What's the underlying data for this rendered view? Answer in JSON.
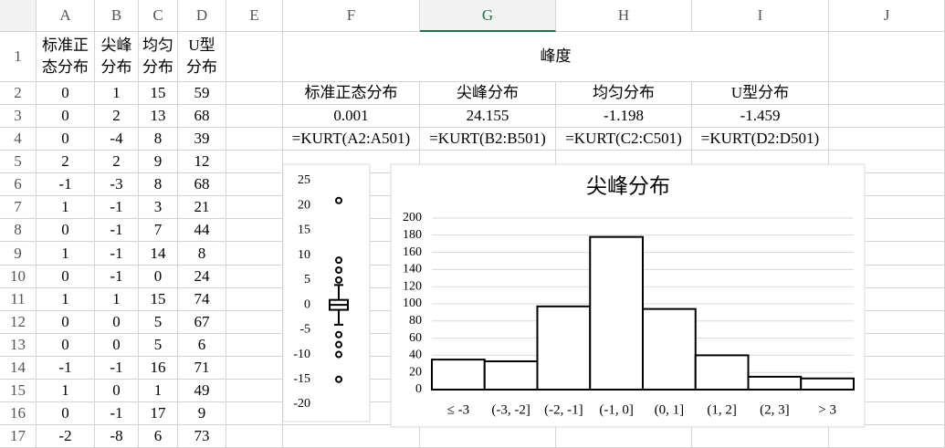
{
  "sheet": {
    "columns": [
      "A",
      "B",
      "C",
      "D",
      "E",
      "F",
      "G",
      "H",
      "I",
      "J"
    ],
    "rows": [
      1,
      2,
      3,
      4,
      5,
      6,
      7,
      8,
      9,
      10,
      11,
      12,
      13,
      14,
      15,
      16,
      17
    ],
    "cells": {
      "A1": "标准正态分布",
      "B1": "尖峰分布",
      "C1": "均匀分布",
      "D1": "U型分布",
      "F1": "峰度",
      "F2": "标准正态分布",
      "G2": "尖峰分布",
      "H2": "均匀分布",
      "I2": "U型分布",
      "F3": 0.001,
      "G3": 24.155,
      "H3": -1.198,
      "I3": -1.459,
      "F4": "=KURT(A2:A501)",
      "G4": "=KURT(B2:B501)",
      "H4": "=KURT(C2:C501)",
      "I4": "=KURT(D2:D501)",
      "A2": 0,
      "B2": 1,
      "C2": 15,
      "D2": 59,
      "A3": 0,
      "B3": 2,
      "C3": 13,
      "D3": 68,
      "A4": 0,
      "B4": -4,
      "C4": 8,
      "D4": 39,
      "A5": 2,
      "B5": 2,
      "C5": 9,
      "D5": 12,
      "A6": -1,
      "B6": -3,
      "C6": 8,
      "D6": 68,
      "A7": 1,
      "B7": -1,
      "C7": 3,
      "D7": 21,
      "A8": 0,
      "B8": -1,
      "C8": 7,
      "D8": 44,
      "A9": 1,
      "B9": -1,
      "C9": 14,
      "D9": 8,
      "A10": 0,
      "B10": -1,
      "C10": 0,
      "D10": 24,
      "A11": 1,
      "B11": 1,
      "C11": 15,
      "D11": 74,
      "A12": 0,
      "B12": 0,
      "C12": 5,
      "D12": 67,
      "A13": 0,
      "B13": 0,
      "C13": 5,
      "D13": 6,
      "A14": -1,
      "B14": -1,
      "C14": 16,
      "D14": 71,
      "A15": 1,
      "B15": 0,
      "C15": 1,
      "D15": 49,
      "A16": 0,
      "B16": -1,
      "C16": 17,
      "D16": 9,
      "A17": -2,
      "B17": -8,
      "C17": 6,
      "D17": 73
    }
  },
  "chart_data": [
    {
      "type": "box",
      "median": 0,
      "q1": -1,
      "q3": 1,
      "whisker_low": -4,
      "whisker_high": 4,
      "outliers": [
        21,
        9,
        7,
        5,
        -6,
        -8,
        -10,
        -15
      ],
      "color": "#000000",
      "ylim": [
        -20,
        25
      ],
      "yticks": [
        -20,
        -15,
        -10,
        -5,
        0,
        5,
        10,
        15,
        20,
        25
      ]
    },
    {
      "type": "bar",
      "title": "尖峰分布",
      "categories": [
        "≤ -3",
        "(-3, -2]",
        "(-2, -1]",
        "(-1, 0]",
        "(0, 1]",
        "(1, 2]",
        "(2, 3]",
        "> 3"
      ],
      "values": [
        35,
        33,
        97,
        178,
        94,
        40,
        15,
        13
      ],
      "color": "#ffffff",
      "ylim": [
        0,
        200
      ],
      "yticks": [
        0,
        20,
        40,
        60,
        80,
        100,
        120,
        140,
        160,
        180,
        200
      ],
      "grid": true
    }
  ]
}
